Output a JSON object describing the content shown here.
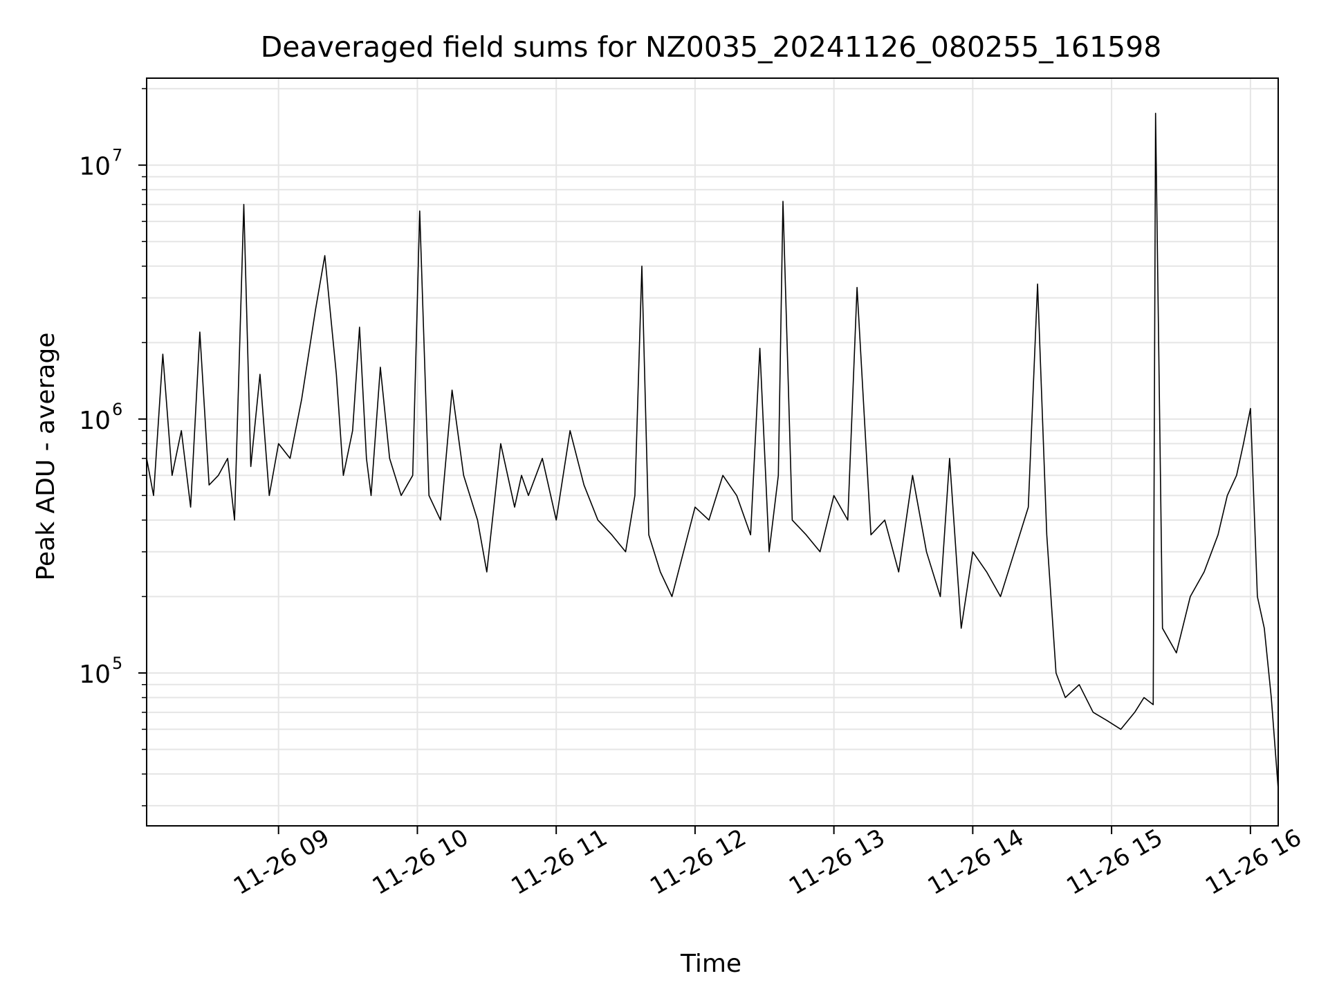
{
  "chart_data": {
    "type": "line",
    "title": "Deaveraged field sums for NZ0035_20241126_080255_161598",
    "xlabel": "Time",
    "ylabel": "Peak ADU - average",
    "yscale": "log",
    "xlim": [
      "11-26 08:03",
      "11-26 16:12"
    ],
    "ylim": [
      25000,
      22000000
    ],
    "x_ticks": [
      "11-26 09",
      "11-26 10",
      "11-26 11",
      "11-26 12",
      "11-26 13",
      "11-26 14",
      "11-26 15",
      "11-26 16"
    ],
    "y_ticks": [
      {
        "label_base": "10",
        "label_exp": "5",
        "value": 100000
      },
      {
        "label_base": "10",
        "label_exp": "6",
        "value": 1000000
      },
      {
        "label_base": "10",
        "label_exp": "7",
        "value": 10000000
      }
    ],
    "grid": true,
    "line_color": "#000000",
    "grid_color": "#e5e5e5",
    "series": [
      {
        "x": [
          "11-26 08:03",
          "11-26 08:06",
          "11-26 08:10",
          "11-26 08:14",
          "11-26 08:18",
          "11-26 08:22",
          "11-26 08:26",
          "11-26 08:30",
          "11-26 08:34",
          "11-26 08:38",
          "11-26 08:41",
          "11-26 08:45",
          "11-26 08:48",
          "11-26 08:52",
          "11-26 08:56",
          "11-26 09:00",
          "11-26 09:05",
          "11-26 09:10",
          "11-26 09:16",
          "11-26 09:20",
          "11-26 09:25",
          "11-26 09:28",
          "11-26 09:32",
          "11-26 09:35",
          "11-26 09:38",
          "11-26 09:40",
          "11-26 09:44",
          "11-26 09:48",
          "11-26 09:53",
          "11-26 09:58",
          "11-26 10:01",
          "11-26 10:05",
          "11-26 10:10",
          "11-26 10:15",
          "11-26 10:20",
          "11-26 10:26",
          "11-26 10:30",
          "11-26 10:36",
          "11-26 10:42",
          "11-26 10:45",
          "11-26 10:48",
          "11-26 10:54",
          "11-26 11:00",
          "11-26 11:06",
          "11-26 11:12",
          "11-26 11:18",
          "11-26 11:24",
          "11-26 11:30",
          "11-26 11:34",
          "11-26 11:37",
          "11-26 11:40",
          "11-26 11:45",
          "11-26 11:50",
          "11-26 11:55",
          "11-26 12:00",
          "11-26 12:06",
          "11-26 12:12",
          "11-26 12:18",
          "11-26 12:24",
          "11-26 12:28",
          "11-26 12:32",
          "11-26 12:36",
          "11-26 12:38",
          "11-26 12:42",
          "11-26 12:48",
          "11-26 12:54",
          "11-26 13:00",
          "11-26 13:06",
          "11-26 13:10",
          "11-26 13:16",
          "11-26 13:22",
          "11-26 13:28",
          "11-26 13:34",
          "11-26 13:40",
          "11-26 13:46",
          "11-26 13:50",
          "11-26 13:55",
          "11-26 14:00",
          "11-26 14:06",
          "11-26 14:12",
          "11-26 14:18",
          "11-26 14:24",
          "11-26 14:28",
          "11-26 14:32",
          "11-26 14:36",
          "11-26 14:40",
          "11-26 14:46",
          "11-26 14:52",
          "11-26 14:58",
          "11-26 15:04",
          "11-26 15:10",
          "11-26 15:14",
          "11-26 15:18",
          "11-26 15:19",
          "11-26 15:22",
          "11-26 15:28",
          "11-26 15:34",
          "11-26 15:40",
          "11-26 15:46",
          "11-26 15:50",
          "11-26 15:54",
          "11-26 15:57",
          "11-26 16:00",
          "11-26 16:03",
          "11-26 16:06",
          "11-26 16:09",
          "11-26 16:12"
        ],
        "y": [
          700000,
          500000,
          1800000,
          600000,
          900000,
          450000,
          2200000,
          550000,
          600000,
          700000,
          400000,
          7000000,
          650000,
          1500000,
          500000,
          800000,
          700000,
          1200000,
          2700000,
          4400000,
          1500000,
          600000,
          900000,
          2300000,
          700000,
          500000,
          1600000,
          700000,
          500000,
          600000,
          6600000,
          500000,
          400000,
          1300000,
          600000,
          400000,
          250000,
          800000,
          450000,
          600000,
          500000,
          700000,
          400000,
          900000,
          550000,
          400000,
          350000,
          300000,
          500000,
          4000000,
          350000,
          250000,
          200000,
          300000,
          450000,
          400000,
          600000,
          500000,
          350000,
          1900000,
          300000,
          600000,
          7200000,
          400000,
          350000,
          300000,
          500000,
          400000,
          3300000,
          350000,
          400000,
          250000,
          600000,
          300000,
          200000,
          700000,
          150000,
          300000,
          250000,
          200000,
          300000,
          450000,
          3400000,
          350000,
          100000,
          80000,
          90000,
          70000,
          65000,
          60000,
          70000,
          80000,
          75000,
          16000000,
          150000,
          120000,
          200000,
          250000,
          350000,
          500000,
          600000,
          800000,
          1100000,
          200000,
          150000,
          80000,
          35000
        ]
      }
    ]
  }
}
